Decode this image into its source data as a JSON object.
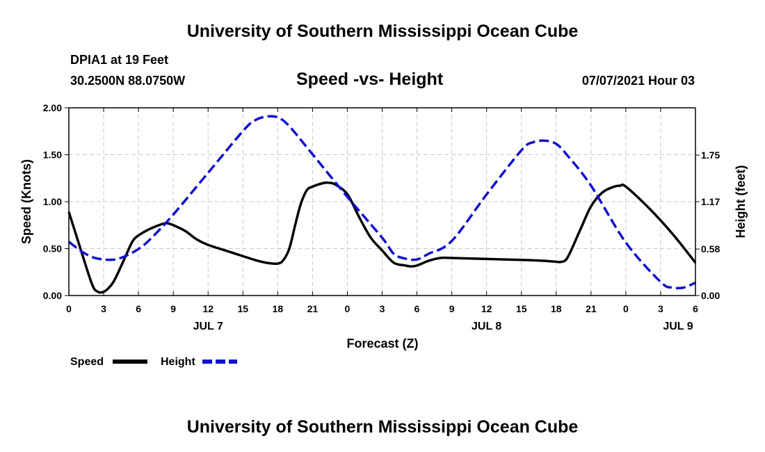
{
  "header": {
    "title": "University of Southern Mississippi Ocean Cube",
    "station": "DPIA1 at 19 Feet",
    "coords": "30.2500N  88.0750W",
    "subtitle": "Speed -vs- Height",
    "datetime": "07/07/2021 Hour 03"
  },
  "footer": {
    "title": "University of Southern Mississippi Ocean Cube"
  },
  "chart_data": {
    "type": "line",
    "title": "Speed -vs- Height",
    "xlabel": "Forecast (Z)",
    "ylabel_left": "Speed (Knots)",
    "ylabel_right": "Height (feet)",
    "xlim": [
      0,
      54
    ],
    "ylim_left": [
      0,
      2.0
    ],
    "ylim_right": [
      0,
      2.34
    ],
    "x_ticks": [
      0,
      3,
      6,
      9,
      12,
      15,
      18,
      21,
      24,
      27,
      30,
      33,
      36,
      39,
      42,
      45,
      48,
      51,
      54
    ],
    "x_tick_labels": [
      "0",
      "3",
      "6",
      "9",
      "12",
      "15",
      "18",
      "21",
      "0",
      "3",
      "6",
      "9",
      "12",
      "15",
      "18",
      "21",
      "0",
      "3",
      "6"
    ],
    "y_ticks_left": [
      0,
      0.5,
      1.0,
      1.5,
      2.0
    ],
    "y_tick_labels_left": [
      "0.00",
      "0.50",
      "1.00",
      "1.50",
      "2.00"
    ],
    "y_ticks_right": [
      0,
      0.58,
      1.17,
      1.75
    ],
    "y_tick_labels_right": [
      "0.00",
      "0.58",
      "1.17",
      "1.75"
    ],
    "day_labels": [
      {
        "x": 12,
        "label": "JUL 7"
      },
      {
        "x": 36,
        "label": "JUL 8"
      },
      {
        "x": 52.5,
        "label": "JUL 9"
      }
    ],
    "grid": true,
    "legend_position": "bottom-left",
    "series": [
      {
        "name": "Speed",
        "axis": "left",
        "color": "#000000",
        "dash": "solid",
        "x": [
          0,
          1,
          2,
          2.5,
          3,
          3.5,
          4,
          5,
          5.5,
          6,
          7,
          8,
          8.5,
          9,
          10,
          11,
          12,
          14,
          16,
          17,
          18,
          18.5,
          19,
          19.5,
          20,
          20.5,
          21,
          22,
          22.5,
          23,
          24,
          25,
          26,
          27,
          28,
          29,
          29.5,
          30,
          31,
          32,
          33,
          36,
          39,
          41,
          42,
          42.5,
          43,
          44,
          45,
          46,
          47,
          47.5,
          48,
          50,
          52,
          54
        ],
        "y": [
          0.89,
          0.5,
          0.12,
          0.04,
          0.04,
          0.09,
          0.18,
          0.45,
          0.58,
          0.64,
          0.71,
          0.76,
          0.77,
          0.75,
          0.69,
          0.6,
          0.54,
          0.46,
          0.38,
          0.35,
          0.34,
          0.38,
          0.5,
          0.75,
          0.98,
          1.12,
          1.16,
          1.2,
          1.2,
          1.18,
          1.08,
          0.84,
          0.62,
          0.48,
          0.35,
          0.32,
          0.31,
          0.32,
          0.37,
          0.4,
          0.4,
          0.39,
          0.38,
          0.37,
          0.36,
          0.36,
          0.41,
          0.68,
          0.95,
          1.1,
          1.16,
          1.17,
          1.16,
          0.93,
          0.66,
          0.35
        ]
      },
      {
        "name": "Height",
        "axis": "right",
        "color": "#1010d0",
        "dash": "dashed",
        "x": [
          0,
          1,
          2,
          3,
          4,
          5,
          6,
          7,
          9,
          12,
          15,
          16,
          17,
          18,
          19,
          21,
          24,
          27,
          28,
          29,
          30,
          31,
          33,
          36,
          39,
          40,
          41,
          42,
          43,
          45,
          48,
          51,
          52,
          53,
          54
        ],
        "y": [
          0.67,
          0.56,
          0.48,
          0.45,
          0.45,
          0.5,
          0.58,
          0.7,
          1.01,
          1.53,
          2.05,
          2.18,
          2.23,
          2.22,
          2.11,
          1.76,
          1.23,
          0.72,
          0.52,
          0.46,
          0.45,
          0.52,
          0.68,
          1.26,
          1.81,
          1.91,
          1.93,
          1.89,
          1.74,
          1.37,
          0.66,
          0.17,
          0.1,
          0.1,
          0.16
        ]
      }
    ],
    "legend": [
      {
        "label": "Speed",
        "color": "#000000",
        "dash": "solid"
      },
      {
        "label": "Height",
        "color": "#1010d0",
        "dash": "dashed"
      }
    ]
  }
}
